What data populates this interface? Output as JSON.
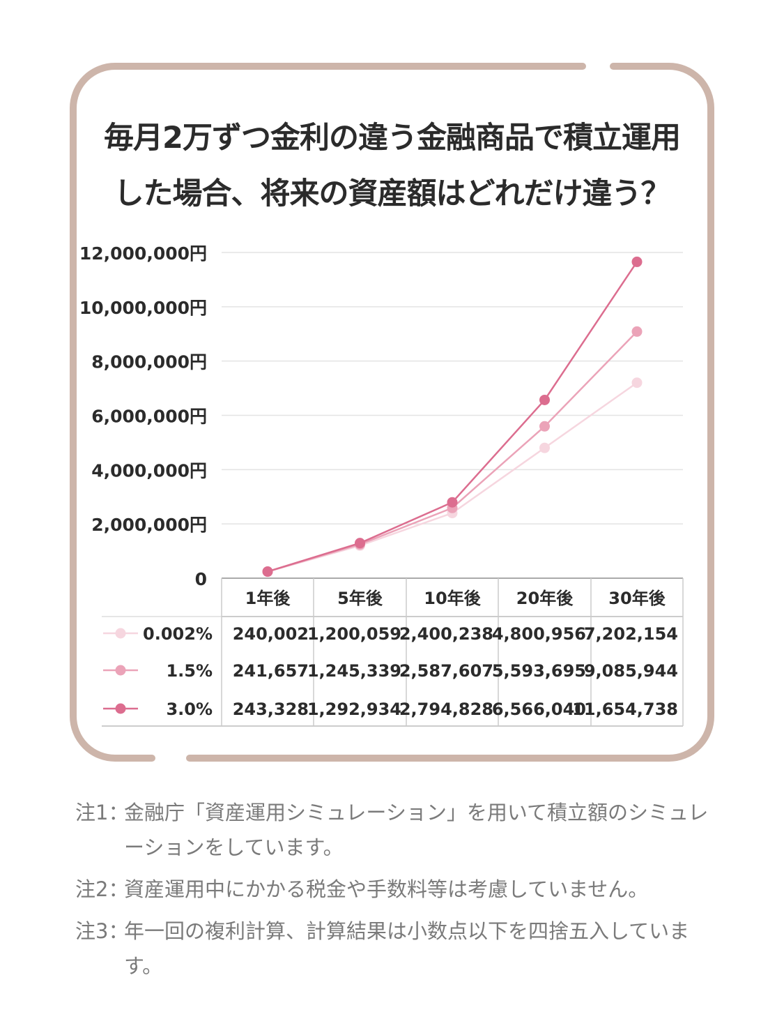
{
  "title": {
    "line1": "毎月2万ずつ金利の違う金融商品で積立運用",
    "line2": "した場合、将来の資産額はどれだけ違う？"
  },
  "colors": {
    "frame": "#cdb5aa",
    "grid": "#e3e3e3",
    "series": [
      "#f6d6df",
      "#eba3b8",
      "#dc6d8f"
    ]
  },
  "chart_data": {
    "type": "line",
    "categories": [
      "1年後",
      "5年後",
      "10年後",
      "20年後",
      "30年後"
    ],
    "y_tick_labels": [
      "0",
      "2,000,000円",
      "4,000,000円",
      "6,000,000円",
      "8,000,000円",
      "10,000,000円",
      "12,000,000円"
    ],
    "ylim": [
      0,
      12000000
    ],
    "grid": true,
    "legend": "table-left",
    "series": [
      {
        "name": "0.002%",
        "values": [
          240002,
          1200059,
          2400238,
          4800956,
          7202154
        ],
        "labels": [
          "240,002",
          "1,200,059",
          "2,400,238",
          "4,800,956",
          "7,202,154"
        ]
      },
      {
        "name": "1.5%",
        "values": [
          241657,
          1245339,
          2587607,
          5593695,
          9085944
        ],
        "labels": [
          "241,657",
          "1,245,339",
          "2,587,607",
          "5,593,695",
          "9,085,944"
        ]
      },
      {
        "name": "3.0%",
        "values": [
          243328,
          1292934,
          2794828,
          6566040,
          11654738
        ],
        "labels": [
          "243,328",
          "1,292,934",
          "2,794,828",
          "6,566,040",
          "11,654,738"
        ]
      }
    ]
  },
  "notes": [
    {
      "label": "注1：",
      "text": "金融庁「資産運用シミュレーション」を用いて積立額のシミュレーションをしています。"
    },
    {
      "label": "注2：",
      "text": "資産運用中にかかる税金や手数料等は考慮していません。"
    },
    {
      "label": "注3：",
      "text": "年一回の複利計算、計算結果は小数点以下を四捨五入しています。"
    }
  ]
}
